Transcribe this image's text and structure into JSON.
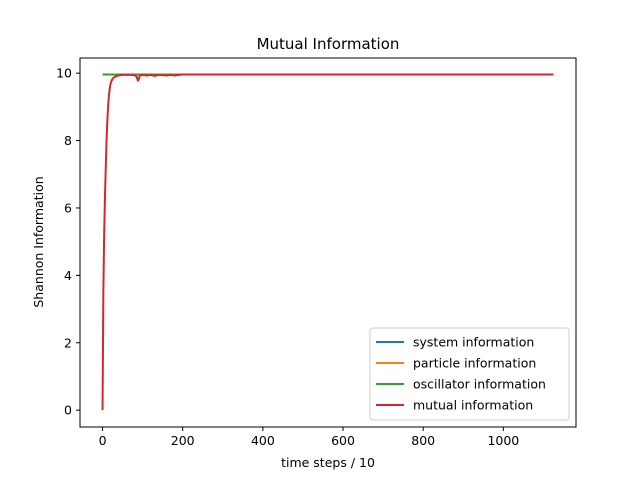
{
  "chart_data": {
    "type": "line",
    "title": "Mutual Information",
    "xlabel": "time steps / 10",
    "ylabel": "Shannon Information",
    "xlim": [
      -56.25,
      1181.25
    ],
    "ylim": [
      -0.5,
      10.45
    ],
    "xticks": [
      0,
      200,
      400,
      600,
      800,
      1000
    ],
    "yticks": [
      0,
      2,
      4,
      6,
      8,
      10
    ],
    "grid": false,
    "legend_position": "lower-right",
    "series": [
      {
        "name": "system information",
        "color": "#1f77b4",
        "x": [
          0,
          1125
        ],
        "y": [
          9.96,
          9.96
        ]
      },
      {
        "name": "particle information",
        "color": "#ff7f0e",
        "x": [
          0,
          1125
        ],
        "y": [
          9.96,
          9.96
        ]
      },
      {
        "name": "oscillator information",
        "color": "#2ca02c",
        "x": [
          0,
          1125
        ],
        "y": [
          9.96,
          9.96
        ]
      },
      {
        "name": "mutual information",
        "color": "#d62728",
        "x": [
          0,
          2,
          4,
          6,
          8,
          10,
          12,
          14,
          16,
          18,
          20,
          22,
          25,
          28,
          32,
          36,
          40,
          45,
          50,
          60,
          70,
          80,
          85,
          88,
          90,
          92,
          95,
          100,
          110,
          120,
          130,
          140,
          150,
          160,
          170,
          180,
          190,
          200,
          300,
          500,
          800,
          1125
        ],
        "y": [
          0.0,
          3.5,
          5.2,
          6.3,
          7.2,
          8.0,
          8.6,
          9.05,
          9.35,
          9.55,
          9.68,
          9.76,
          9.83,
          9.87,
          9.9,
          9.92,
          9.93,
          9.94,
          9.95,
          9.95,
          9.95,
          9.94,
          9.9,
          9.78,
          9.8,
          9.9,
          9.94,
          9.95,
          9.93,
          9.95,
          9.92,
          9.95,
          9.94,
          9.93,
          9.95,
          9.93,
          9.95,
          9.96,
          9.96,
          9.96,
          9.96,
          9.96
        ]
      }
    ]
  }
}
